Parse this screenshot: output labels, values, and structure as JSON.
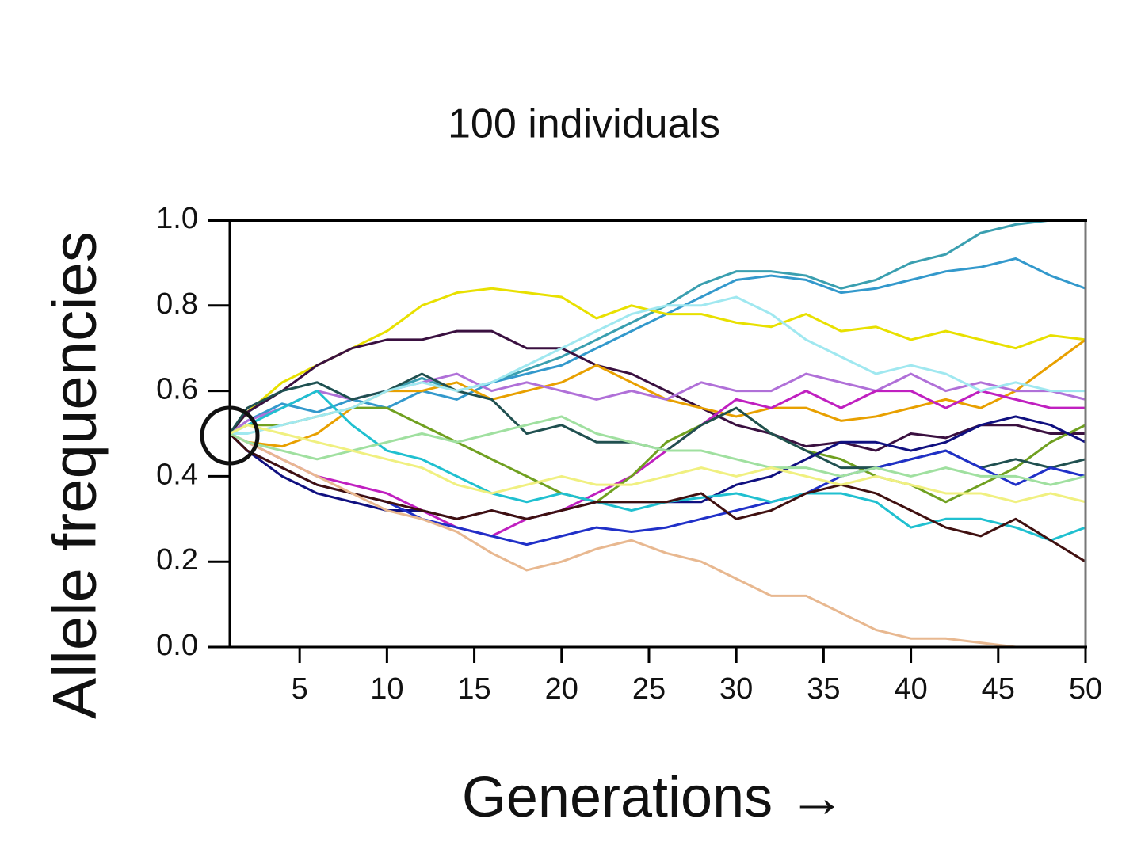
{
  "chart_data": {
    "type": "line",
    "title": "100 individuals",
    "x_label": "Generations →",
    "y_label": "Allele frequencies",
    "x": [
      1,
      2,
      4,
      6,
      8,
      10,
      12,
      14,
      16,
      18,
      20,
      22,
      24,
      26,
      28,
      30,
      32,
      34,
      36,
      38,
      40,
      42,
      44,
      46,
      48,
      50
    ],
    "xlim": [
      1,
      50
    ],
    "xticks": [
      5,
      10,
      15,
      20,
      25,
      30,
      35,
      40,
      45,
      50
    ],
    "ylim": [
      0,
      1
    ],
    "yticks": [
      {
        "value": 0,
        "label": "0.0"
      },
      0.2,
      0.4,
      0.6,
      0.8,
      {
        "value": 1,
        "label": "1.0"
      }
    ],
    "series": [
      {
        "color": "#3a9fb0",
        "values": [
          0.5,
          0.55,
          0.6,
          0.62,
          0.58,
          0.6,
          0.63,
          0.6,
          0.62,
          0.65,
          0.68,
          0.72,
          0.76,
          0.8,
          0.85,
          0.88,
          0.88,
          0.87,
          0.84,
          0.86,
          0.9,
          0.92,
          0.97,
          0.99,
          1.0,
          1.0
        ]
      },
      {
        "color": "#3399cc",
        "values": [
          0.5,
          0.53,
          0.57,
          0.55,
          0.58,
          0.56,
          0.6,
          0.58,
          0.62,
          0.64,
          0.66,
          0.7,
          0.74,
          0.78,
          0.82,
          0.86,
          0.87,
          0.86,
          0.83,
          0.84,
          0.86,
          0.88,
          0.89,
          0.91,
          0.87,
          0.84
        ]
      },
      {
        "color": "#e8e000",
        "values": [
          0.5,
          0.55,
          0.62,
          0.66,
          0.7,
          0.74,
          0.8,
          0.83,
          0.84,
          0.83,
          0.82,
          0.77,
          0.8,
          0.78,
          0.78,
          0.76,
          0.75,
          0.78,
          0.74,
          0.75,
          0.72,
          0.74,
          0.72,
          0.7,
          0.73,
          0.72
        ]
      },
      {
        "color": "#3a1040",
        "values": [
          0.5,
          0.55,
          0.6,
          0.66,
          0.7,
          0.72,
          0.72,
          0.74,
          0.74,
          0.7,
          0.7,
          0.66,
          0.64,
          0.6,
          0.56,
          0.52,
          0.5,
          0.47,
          0.48,
          0.46,
          0.5,
          0.49,
          0.52,
          0.52,
          0.5,
          0.5
        ]
      },
      {
        "color": "#e8a000",
        "values": [
          0.5,
          0.48,
          0.47,
          0.5,
          0.56,
          0.6,
          0.6,
          0.62,
          0.58,
          0.6,
          0.62,
          0.66,
          0.62,
          0.58,
          0.56,
          0.54,
          0.56,
          0.56,
          0.53,
          0.54,
          0.56,
          0.58,
          0.56,
          0.6,
          0.66,
          0.72
        ]
      },
      {
        "color": "#b070d8",
        "values": [
          0.5,
          0.53,
          0.56,
          0.6,
          0.58,
          0.6,
          0.62,
          0.64,
          0.6,
          0.62,
          0.6,
          0.58,
          0.6,
          0.58,
          0.62,
          0.6,
          0.6,
          0.64,
          0.62,
          0.6,
          0.64,
          0.6,
          0.62,
          0.6,
          0.6,
          0.58
        ]
      },
      {
        "color": "#c020c0",
        "values": [
          0.5,
          0.48,
          0.44,
          0.4,
          0.38,
          0.36,
          0.32,
          0.28,
          0.26,
          0.3,
          0.32,
          0.36,
          0.4,
          0.46,
          0.52,
          0.58,
          0.56,
          0.6,
          0.56,
          0.6,
          0.6,
          0.56,
          0.6,
          0.58,
          0.56,
          0.56
        ]
      },
      {
        "color": "#70a020",
        "values": [
          0.5,
          0.52,
          0.52,
          0.54,
          0.56,
          0.56,
          0.52,
          0.48,
          0.44,
          0.4,
          0.36,
          0.34,
          0.4,
          0.48,
          0.52,
          0.56,
          0.5,
          0.46,
          0.44,
          0.4,
          0.38,
          0.34,
          0.38,
          0.42,
          0.48,
          0.52
        ]
      },
      {
        "color": "#205050",
        "values": [
          0.5,
          0.56,
          0.6,
          0.62,
          0.58,
          0.6,
          0.64,
          0.6,
          0.58,
          0.5,
          0.52,
          0.48,
          0.48,
          0.46,
          0.52,
          0.56,
          0.5,
          0.46,
          0.42,
          0.42,
          0.44,
          0.46,
          0.42,
          0.44,
          0.42,
          0.44
        ]
      },
      {
        "color": "#101080",
        "values": [
          0.5,
          0.46,
          0.4,
          0.36,
          0.34,
          0.32,
          0.32,
          0.3,
          0.32,
          0.3,
          0.32,
          0.34,
          0.34,
          0.34,
          0.34,
          0.38,
          0.4,
          0.44,
          0.48,
          0.48,
          0.46,
          0.48,
          0.52,
          0.54,
          0.52,
          0.48
        ]
      },
      {
        "color": "#2030c8",
        "values": [
          0.5,
          0.46,
          0.42,
          0.38,
          0.36,
          0.34,
          0.3,
          0.28,
          0.26,
          0.24,
          0.26,
          0.28,
          0.27,
          0.28,
          0.3,
          0.32,
          0.34,
          0.36,
          0.4,
          0.42,
          0.44,
          0.46,
          0.42,
          0.38,
          0.42,
          0.4
        ]
      },
      {
        "color": "#20c0d0",
        "values": [
          0.5,
          0.52,
          0.56,
          0.6,
          0.52,
          0.46,
          0.44,
          0.4,
          0.36,
          0.34,
          0.36,
          0.34,
          0.32,
          0.34,
          0.35,
          0.36,
          0.34,
          0.36,
          0.36,
          0.34,
          0.28,
          0.3,
          0.3,
          0.28,
          0.25,
          0.28
        ]
      },
      {
        "color": "#401010",
        "values": [
          0.5,
          0.46,
          0.42,
          0.38,
          0.36,
          0.34,
          0.32,
          0.3,
          0.32,
          0.3,
          0.32,
          0.34,
          0.34,
          0.34,
          0.36,
          0.3,
          0.32,
          0.36,
          0.38,
          0.36,
          0.32,
          0.28,
          0.26,
          0.3,
          0.25,
          0.2
        ]
      },
      {
        "color": "#e8b890",
        "values": [
          0.5,
          0.48,
          0.44,
          0.4,
          0.36,
          0.32,
          0.3,
          0.27,
          0.22,
          0.18,
          0.2,
          0.23,
          0.25,
          0.22,
          0.2,
          0.16,
          0.12,
          0.12,
          0.08,
          0.04,
          0.02,
          0.02,
          0.01,
          0,
          0,
          0
        ]
      },
      {
        "color": "#a0e8f0",
        "values": [
          0.5,
          0.5,
          0.52,
          0.54,
          0.56,
          0.6,
          0.62,
          0.6,
          0.62,
          0.66,
          0.7,
          0.74,
          0.78,
          0.8,
          0.8,
          0.82,
          0.78,
          0.72,
          0.68,
          0.64,
          0.66,
          0.64,
          0.6,
          0.62,
          0.6,
          0.6
        ]
      },
      {
        "color": "#a0e0a0",
        "values": [
          0.5,
          0.48,
          0.46,
          0.44,
          0.46,
          0.48,
          0.5,
          0.48,
          0.5,
          0.52,
          0.54,
          0.5,
          0.48,
          0.46,
          0.46,
          0.44,
          0.42,
          0.42,
          0.4,
          0.42,
          0.4,
          0.42,
          0.4,
          0.4,
          0.38,
          0.4
        ]
      },
      {
        "color": "#f0f080",
        "values": [
          0.5,
          0.52,
          0.5,
          0.48,
          0.46,
          0.44,
          0.42,
          0.38,
          0.36,
          0.38,
          0.4,
          0.38,
          0.38,
          0.4,
          0.42,
          0.4,
          0.42,
          0.4,
          0.38,
          0.4,
          0.38,
          0.36,
          0.36,
          0.34,
          0.36,
          0.34
        ]
      }
    ]
  }
}
